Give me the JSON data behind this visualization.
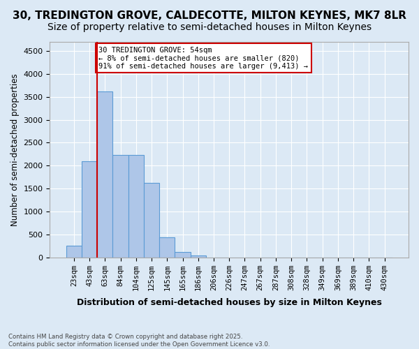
{
  "title": "30, TREDINGTON GROVE, CALDECOTTE, MILTON KEYNES, MK7 8LR",
  "subtitle": "Size of property relative to semi-detached houses in Milton Keynes",
  "xlabel": "Distribution of semi-detached houses by size in Milton Keynes",
  "ylabel": "Number of semi-detached properties",
  "footnote": "Contains HM Land Registry data © Crown copyright and database right 2025.\nContains public sector information licensed under the Open Government Licence v3.0.",
  "bin_labels": [
    "23sqm",
    "43sqm",
    "63sqm",
    "84sqm",
    "104sqm",
    "125sqm",
    "145sqm",
    "165sqm",
    "186sqm",
    "206sqm",
    "226sqm",
    "247sqm",
    "267sqm",
    "287sqm",
    "308sqm",
    "328sqm",
    "349sqm",
    "369sqm",
    "389sqm",
    "410sqm",
    "430sqm"
  ],
  "bar_heights": [
    250,
    2100,
    3620,
    2230,
    2230,
    1620,
    430,
    110,
    40,
    0,
    0,
    0,
    0,
    0,
    0,
    0,
    0,
    0,
    0,
    0,
    0
  ],
  "bar_color": "#aec6e8",
  "bar_edgecolor": "#5b9bd5",
  "vline_color": "#cc0000",
  "annotation_title": "30 TREDINGTON GROVE: 54sqm",
  "annotation_line2": "← 8% of semi-detached houses are smaller (820)",
  "annotation_line3": "91% of semi-detached houses are larger (9,413) →",
  "annotation_box_color": "#cc0000",
  "ylim": [
    0,
    4700
  ],
  "yticks": [
    0,
    500,
    1000,
    1500,
    2000,
    2500,
    3000,
    3500,
    4000,
    4500
  ],
  "background_color": "#dce9f5",
  "plot_background": "#dce9f5",
  "grid_color": "#ffffff",
  "title_fontsize": 11,
  "subtitle_fontsize": 10
}
